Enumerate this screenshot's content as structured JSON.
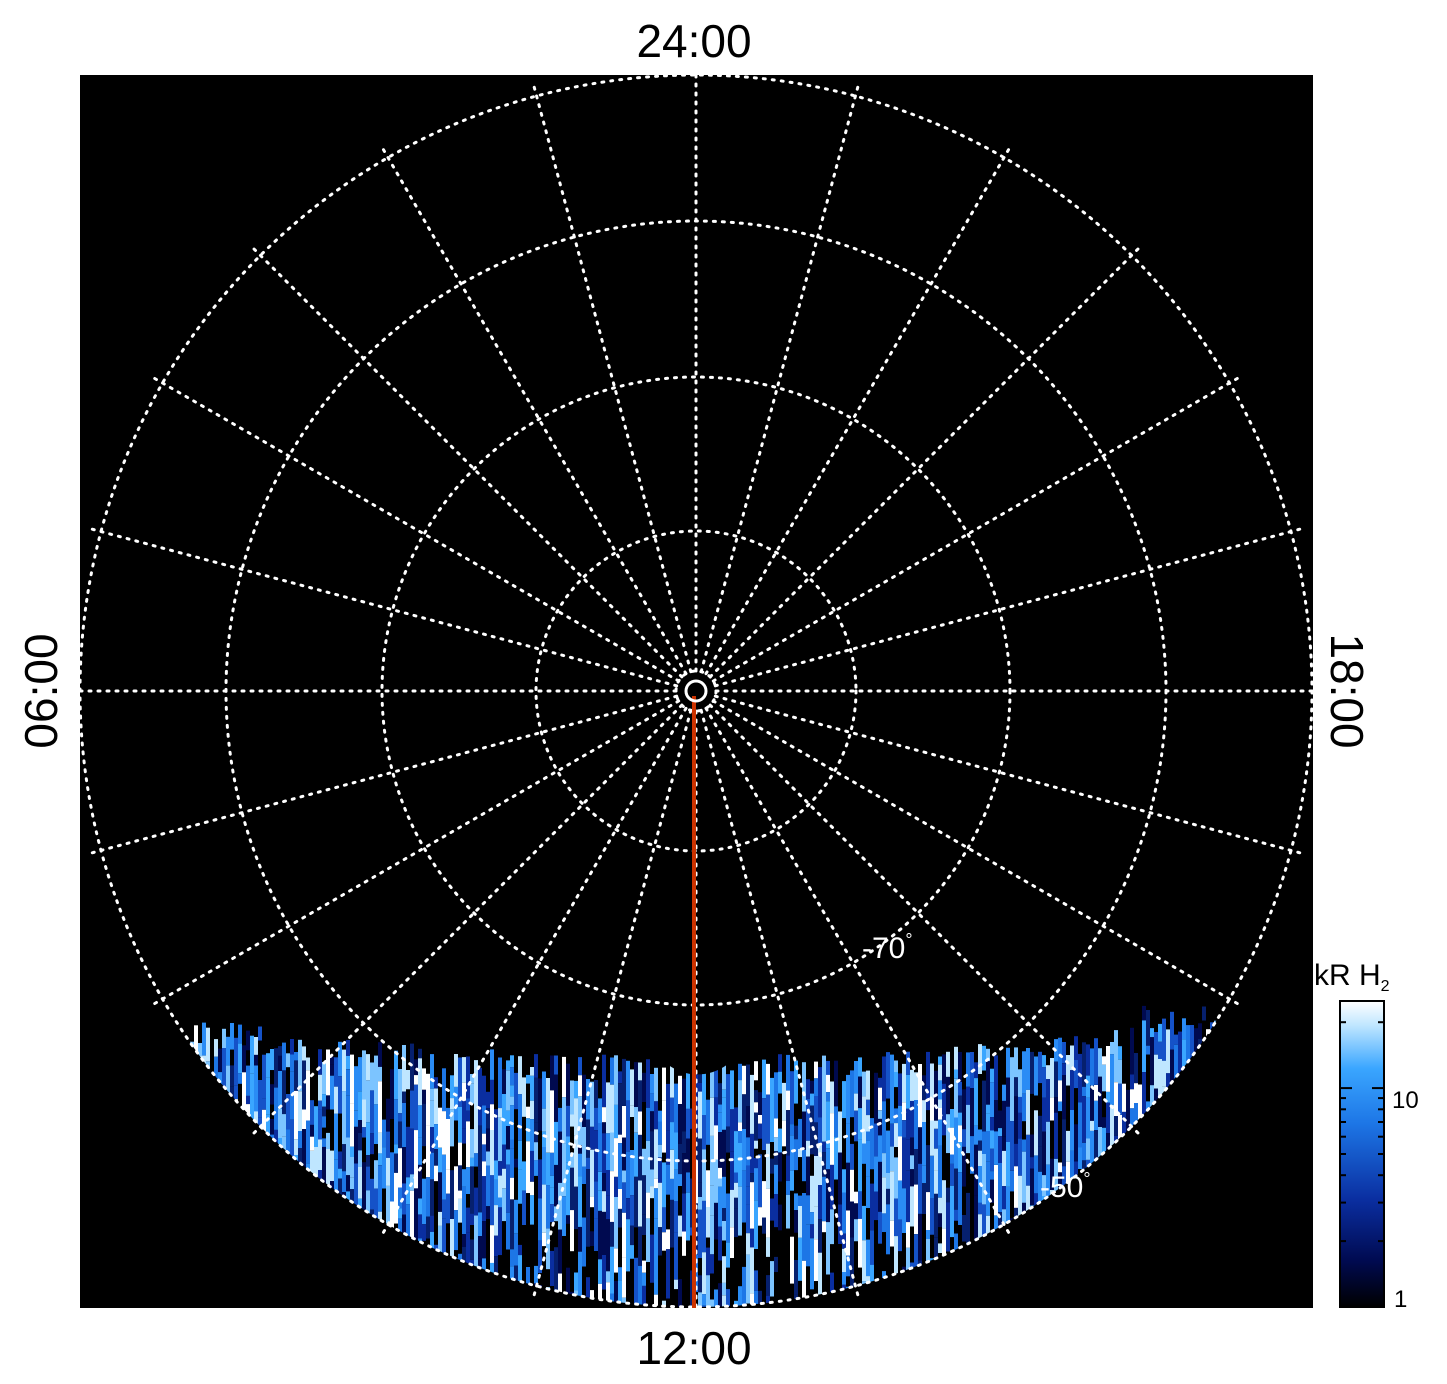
{
  "local_time_labels": {
    "top": "24:00",
    "bottom": "12:00",
    "left": "06:00",
    "right": "18:00"
  },
  "latitude_labels": {
    "inner": "-70",
    "outer": "-50",
    "degree_symbol": "°"
  },
  "colorbar": {
    "title_main": "kR H",
    "title_sub": "2",
    "tick_high": "10",
    "tick_low": "1",
    "colors": [
      "#000000",
      "#000a50",
      "#0a2ea0",
      "#1d76e6",
      "#3aa6ff",
      "#bfe6ff",
      "#ffffff"
    ]
  },
  "colors": {
    "background": "#000000",
    "grid": "#ffffff",
    "meridian": "#cc3300"
  }
}
